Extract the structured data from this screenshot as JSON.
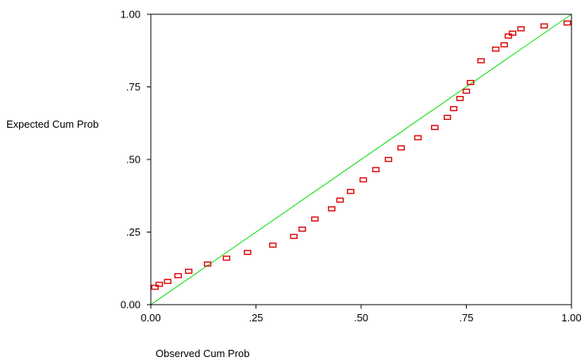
{
  "chart_data": {
    "type": "scatter",
    "title": "",
    "xlabel": "Observed Cum Prob",
    "ylabel": "Expected Cum Prob",
    "xlim": [
      0,
      1
    ],
    "ylim": [
      0,
      1
    ],
    "xticks": [
      {
        "value": 0,
        "label": "0.00"
      },
      {
        "value": 0.25,
        "label": ".25"
      },
      {
        "value": 0.5,
        "label": ".50"
      },
      {
        "value": 0.75,
        "label": ".75"
      },
      {
        "value": 1,
        "label": "1.00"
      }
    ],
    "yticks": [
      {
        "value": 0,
        "label": "0.00"
      },
      {
        "value": 0.25,
        "label": ".25"
      },
      {
        "value": 0.5,
        "label": ".50"
      },
      {
        "value": 0.75,
        "label": ".75"
      },
      {
        "value": 1,
        "label": "1.00"
      }
    ],
    "grid": false,
    "reference_line": {
      "from": [
        0,
        0
      ],
      "to": [
        1,
        1
      ],
      "color": "#00dd00"
    },
    "marker": {
      "shape": "square",
      "color": "#dd0000"
    },
    "points": [
      {
        "x": 0.01,
        "y": 0.06
      },
      {
        "x": 0.02,
        "y": 0.07
      },
      {
        "x": 0.04,
        "y": 0.08
      },
      {
        "x": 0.065,
        "y": 0.1
      },
      {
        "x": 0.09,
        "y": 0.115
      },
      {
        "x": 0.135,
        "y": 0.14
      },
      {
        "x": 0.18,
        "y": 0.16
      },
      {
        "x": 0.23,
        "y": 0.18
      },
      {
        "x": 0.29,
        "y": 0.205
      },
      {
        "x": 0.34,
        "y": 0.235
      },
      {
        "x": 0.36,
        "y": 0.26
      },
      {
        "x": 0.39,
        "y": 0.295
      },
      {
        "x": 0.43,
        "y": 0.33
      },
      {
        "x": 0.45,
        "y": 0.36
      },
      {
        "x": 0.475,
        "y": 0.39
      },
      {
        "x": 0.505,
        "y": 0.43
      },
      {
        "x": 0.535,
        "y": 0.465
      },
      {
        "x": 0.565,
        "y": 0.5
      },
      {
        "x": 0.595,
        "y": 0.54
      },
      {
        "x": 0.635,
        "y": 0.575
      },
      {
        "x": 0.675,
        "y": 0.61
      },
      {
        "x": 0.705,
        "y": 0.645
      },
      {
        "x": 0.72,
        "y": 0.675
      },
      {
        "x": 0.735,
        "y": 0.71
      },
      {
        "x": 0.75,
        "y": 0.735
      },
      {
        "x": 0.76,
        "y": 0.765
      },
      {
        "x": 0.785,
        "y": 0.84
      },
      {
        "x": 0.82,
        "y": 0.88
      },
      {
        "x": 0.84,
        "y": 0.895
      },
      {
        "x": 0.85,
        "y": 0.925
      },
      {
        "x": 0.86,
        "y": 0.935
      },
      {
        "x": 0.88,
        "y": 0.95
      },
      {
        "x": 0.935,
        "y": 0.96
      },
      {
        "x": 0.99,
        "y": 0.97
      }
    ]
  }
}
